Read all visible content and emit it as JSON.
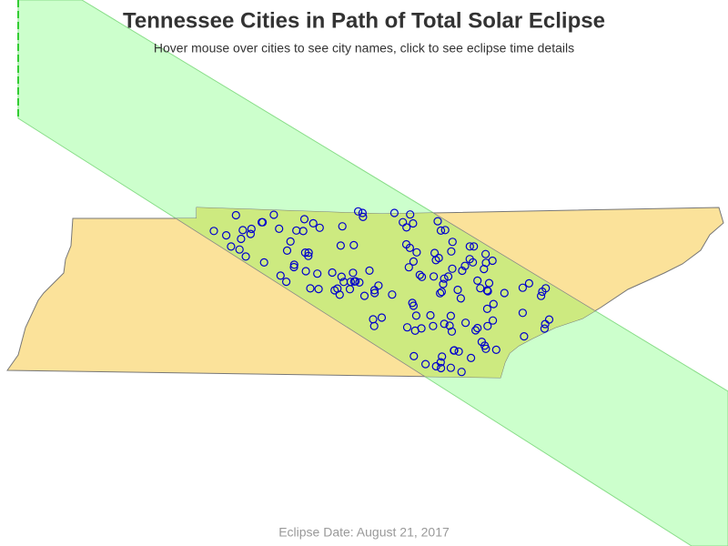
{
  "title": "Tennessee Cities in Path of Total Solar Eclipse",
  "subtitle": "Hover mouse over cities to see city names, click to see eclipse time details",
  "footer": "Eclipse Date: August 21, 2017"
}
